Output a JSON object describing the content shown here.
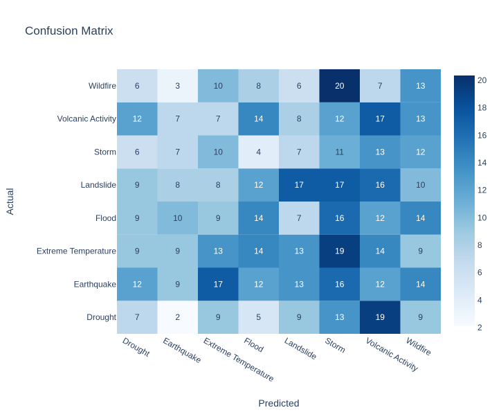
{
  "chart_data": {
    "type": "heatmap",
    "title": "Confusion Matrix",
    "xlabel": "Predicted",
    "ylabel": "Actual",
    "x_categories": [
      "Drought",
      "Earthquake",
      "Extreme Temperature",
      "Flood",
      "Landslide",
      "Storm",
      "Volcanic Activity",
      "Wildfire"
    ],
    "y_categories": [
      "Drought",
      "Earthquake",
      "Extreme Temperature",
      "Flood",
      "Landslide",
      "Storm",
      "Volcanic Activity",
      "Wildfire"
    ],
    "z": [
      [
        7,
        2,
        9,
        5,
        9,
        13,
        19,
        9
      ],
      [
        12,
        9,
        17,
        12,
        13,
        16,
        12,
        14
      ],
      [
        9,
        9,
        13,
        14,
        13,
        19,
        14,
        9
      ],
      [
        9,
        10,
        9,
        14,
        7,
        16,
        12,
        14
      ],
      [
        9,
        8,
        8,
        12,
        17,
        17,
        16,
        10
      ],
      [
        6,
        7,
        10,
        4,
        7,
        11,
        13,
        12
      ],
      [
        12,
        7,
        7,
        14,
        8,
        12,
        17,
        13
      ],
      [
        6,
        3,
        10,
        8,
        6,
        20,
        7,
        13
      ]
    ],
    "zmin": 2,
    "zmax": 20,
    "colorscale": "Blues",
    "colorbar_ticks": [
      2,
      4,
      6,
      8,
      10,
      12,
      14,
      16,
      18,
      20
    ]
  }
}
